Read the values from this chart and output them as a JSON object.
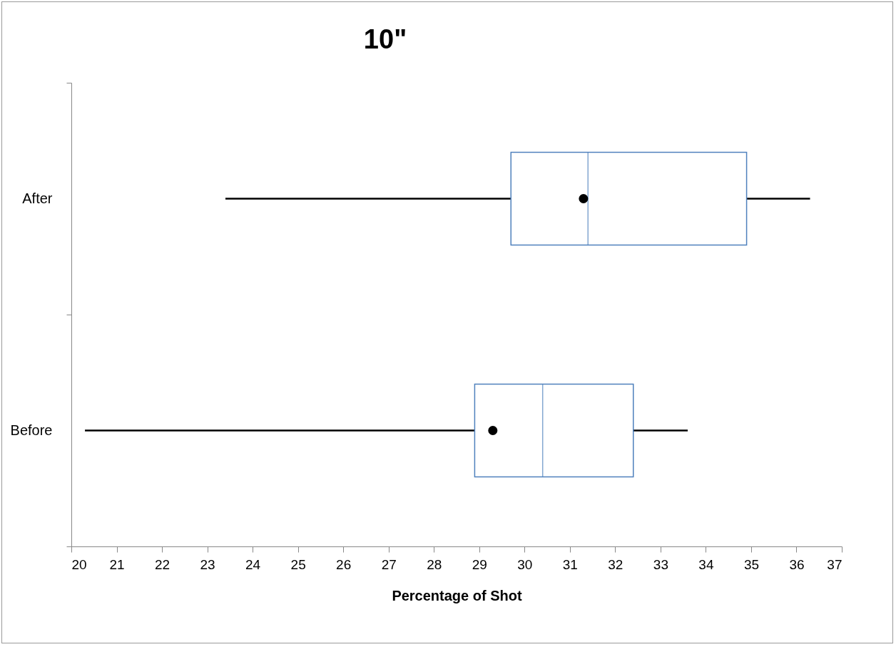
{
  "chart_data": {
    "type": "box",
    "orientation": "horizontal",
    "title": "10\"",
    "xlabel": "Percentage of Shot",
    "categories": [
      "After",
      "Before"
    ],
    "color": "#4f81bd",
    "boxes": [
      {
        "low": 23.4,
        "q1": 29.7,
        "median": 31.4,
        "q3": 34.9,
        "high": 36.3,
        "mean": 31.3
      },
      {
        "low": 20.3,
        "q1": 28.9,
        "median": 30.4,
        "q3": 32.4,
        "high": 33.6,
        "mean": 29.3
      }
    ],
    "xlim": [
      20,
      37
    ],
    "xticks": [
      20,
      21,
      22,
      23,
      24,
      25,
      26,
      27,
      28,
      29,
      30,
      31,
      32,
      33,
      34,
      35,
      36,
      37
    ]
  }
}
